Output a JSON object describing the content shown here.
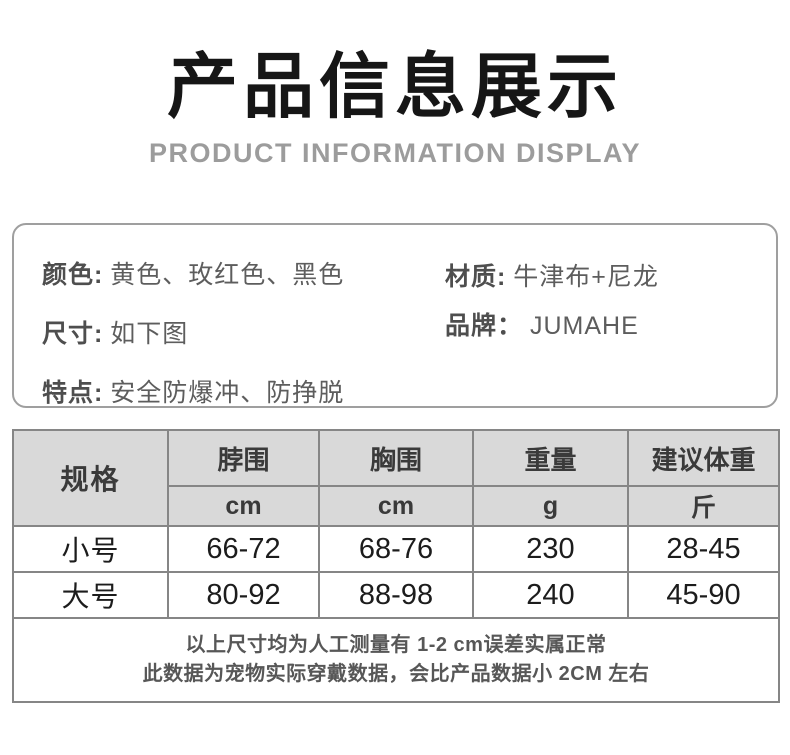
{
  "page": {
    "title": "产品信息展示",
    "subtitle": "PRODUCT INFORMATION DISPLAY"
  },
  "info_box": {
    "left": [
      {
        "label": "颜色:",
        "value": "黄色、玫红色、黑色"
      },
      {
        "label": "尺寸:",
        "value": "如下图"
      },
      {
        "label": "特点:",
        "value": "安全防爆冲、防挣脱"
      }
    ],
    "right": [
      {
        "label": "材质:",
        "value": "牛津布+尼龙"
      },
      {
        "label": "品牌：",
        "value": "JUMAHE"
      }
    ]
  },
  "size_table": {
    "spec_header": "规格",
    "columns": [
      {
        "name": "脖围",
        "unit": "cm"
      },
      {
        "name": "胸围",
        "unit": "cm"
      },
      {
        "name": "重量",
        "unit": "g"
      },
      {
        "name": "建议体重",
        "unit": "斤"
      }
    ],
    "rows": [
      {
        "spec": "小号",
        "values": [
          "66-72",
          "68-76",
          "230",
          "28-45"
        ]
      },
      {
        "spec": "大号",
        "values": [
          "80-92",
          "88-98",
          "240",
          "45-90"
        ]
      }
    ],
    "notes": [
      "以上尺寸均为人工测量有 1-2 cm误差实属正常",
      "此数据为宠物实际穿戴数据，会比产品数据小 2CM 左右"
    ]
  },
  "colors": {
    "table_header_bg": "#d9d9d9",
    "table_border": "#868686",
    "subtitle_gray": "#9c9c9c"
  }
}
